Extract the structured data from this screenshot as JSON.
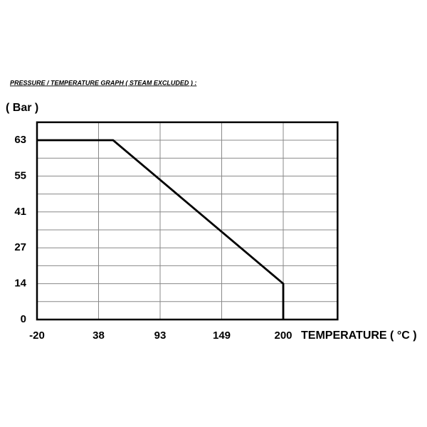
{
  "chart_data": {
    "type": "line",
    "title": "PRESSURE / TEMPERATURE GRAPH ( STEAM EXCLUDED ) :",
    "y_label": "( Bar )",
    "x_label": "TEMPERATURE ( °C )",
    "x": [
      -20,
      51,
      200,
      200
    ],
    "series": [
      {
        "color": "#000000",
        "values": [
          63,
          63,
          14,
          0
        ]
      }
    ],
    "xlim": [
      -20,
      245
    ],
    "xticks": [
      -20,
      38,
      93,
      149,
      200
    ],
    "ylim": [
      0,
      67
    ],
    "yticks": [
      0,
      14,
      27,
      41,
      55,
      63
    ],
    "grid": true
  }
}
